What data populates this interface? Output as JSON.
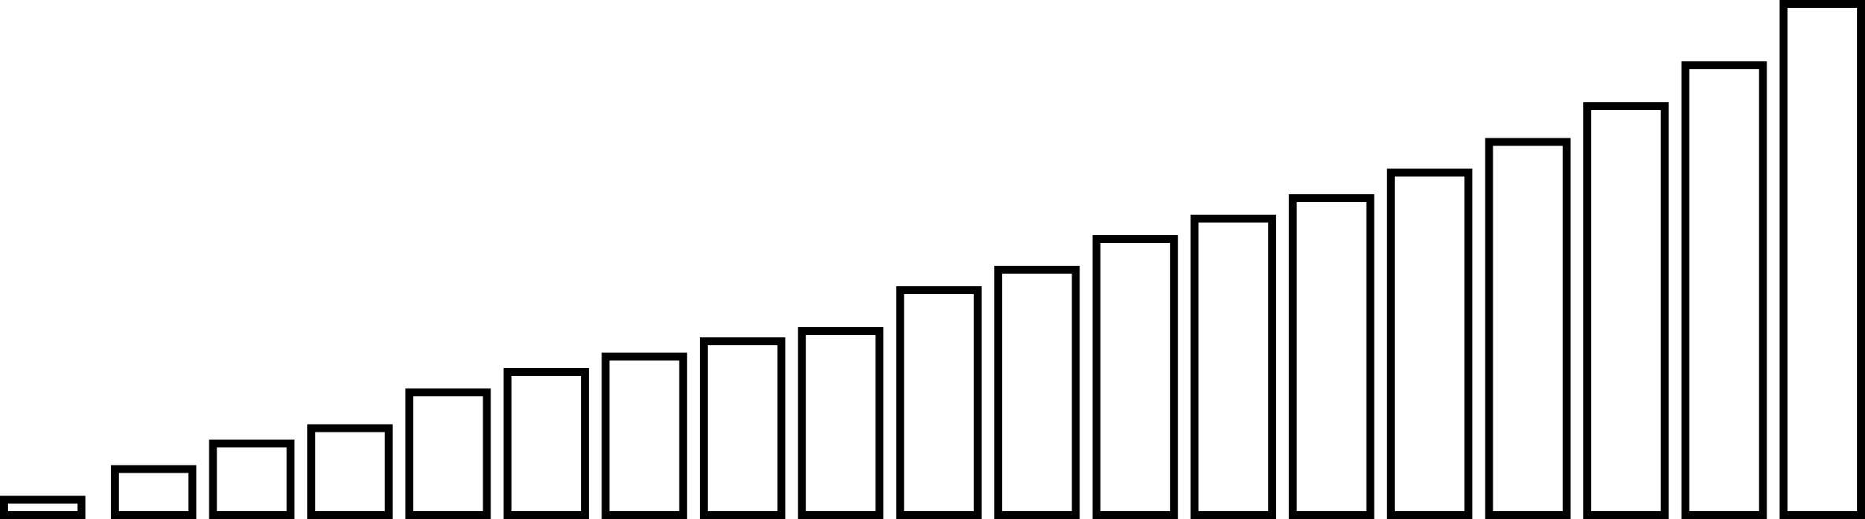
{
  "chart_data": {
    "type": "bar",
    "values": [
      3,
      9,
      14,
      17,
      24,
      28,
      31,
      34,
      36,
      44,
      48,
      54,
      58,
      62,
      67,
      73,
      80,
      88,
      100
    ],
    "color": "#000000",
    "fill": "#ffffff",
    "ylim": [
      0,
      100
    ]
  }
}
